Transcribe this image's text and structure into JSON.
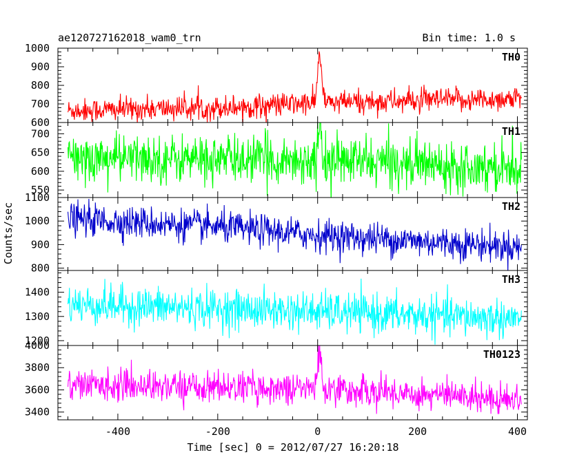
{
  "chart_data": {
    "type": "line",
    "title": "ae120727162018_wam0_trn",
    "subtitle": "Bin time: 1.0 s",
    "xlabel": "Time [sec] 0 = 2012/07/27 16:20:18",
    "ylabel": "Counts/sec",
    "xlim": [
      -520,
      420
    ],
    "x_range": [
      -500,
      408
    ],
    "x_ticks": [
      -400,
      -200,
      0,
      200,
      400
    ],
    "grid": false,
    "series": [
      {
        "name": "TH0",
        "color": "#ff0000",
        "ylim": [
          600,
          1000
        ],
        "yticks": [
          600,
          700,
          800,
          900,
          1000
        ],
        "trend": [
          [
            -500,
            665
          ],
          [
            -200,
            680
          ],
          [
            0,
            705
          ],
          [
            400,
            728
          ]
        ],
        "noise": 32,
        "burst": {
          "t": 4,
          "peak": 1000,
          "width": 4
        }
      },
      {
        "name": "TH1",
        "color": "#00ff00",
        "ylim": [
          530,
          730
        ],
        "yticks": [
          550,
          600,
          650,
          700
        ],
        "trend": [
          [
            -500,
            635
          ],
          [
            0,
            630
          ],
          [
            400,
            612
          ]
        ],
        "noise": 32,
        "burst": {
          "t": 4,
          "peak": 720,
          "width": 3
        }
      },
      {
        "name": "TH2",
        "color": "#0000cc",
        "ylim": [
          790,
          1100
        ],
        "yticks": [
          800,
          900,
          1000,
          1100
        ],
        "trend": [
          [
            -500,
            1010
          ],
          [
            -200,
            975
          ],
          [
            0,
            940
          ],
          [
            400,
            890
          ]
        ],
        "noise": 34,
        "burst": null
      },
      {
        "name": "TH3",
        "color": "#00ffff",
        "ylim": [
          1180,
          1490
        ],
        "yticks": [
          1200,
          1300,
          1400
        ],
        "trend": [
          [
            -500,
            1350
          ],
          [
            0,
            1320
          ],
          [
            400,
            1290
          ]
        ],
        "noise": 40,
        "burst": null
      },
      {
        "name": "TH0123",
        "color": "#ff00ff",
        "ylim": [
          3330,
          4000
        ],
        "yticks": [
          3400,
          3600,
          3800,
          4000
        ],
        "trend": [
          [
            -500,
            3650
          ],
          [
            0,
            3610
          ],
          [
            400,
            3520
          ]
        ],
        "noise": 70,
        "burst": {
          "t": 4,
          "peak": 3990,
          "width": 4
        }
      }
    ]
  }
}
